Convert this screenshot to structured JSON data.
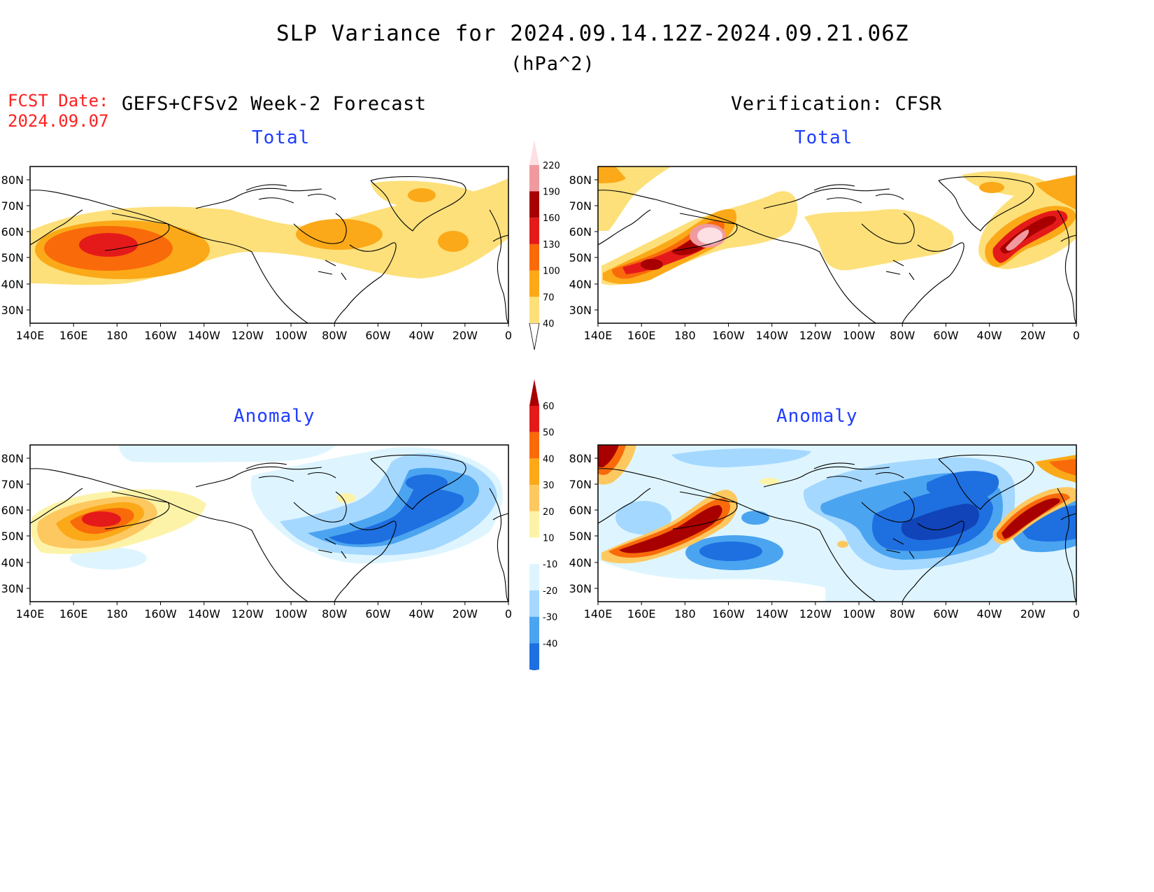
{
  "header": {
    "title": "SLP Variance for 2024.09.14.12Z-2024.09.21.06Z",
    "units": "(hPa^2)",
    "fcst_label": "FCST Date:",
    "fcst_date": "2024.09.07",
    "left_heading": "GEFS+CFSv2 Week-2 Forecast",
    "right_heading": "Verification: CFSR"
  },
  "panels": {
    "tl_title": "Total",
    "tr_title": "Total",
    "bl_title": "Anomaly",
    "br_title": "Anomaly"
  },
  "axes": {
    "lat_labels": [
      "80N",
      "70N",
      "60N",
      "50N",
      "40N",
      "30N"
    ],
    "lon_labels": [
      "140E",
      "160E",
      "180",
      "160W",
      "140W",
      "120W",
      "100W",
      "80W",
      "60W",
      "40W",
      "20W",
      "0"
    ]
  },
  "colorbars": {
    "total": {
      "levels": [
        "40",
        "70",
        "100",
        "130",
        "160",
        "190",
        "220"
      ],
      "colors": [
        "#fde07a",
        "#fba918",
        "#f96a0a",
        "#e41a1a",
        "#a80000",
        "#f09aa0",
        "#fde0e4"
      ]
    },
    "anomaly": {
      "levels": [
        "60",
        "50",
        "40",
        "30",
        "20",
        "10",
        "-10",
        "-20",
        "-30",
        "-40"
      ],
      "colors": [
        "#a80000",
        "#e41a1a",
        "#f96a0a",
        "#fba918",
        "#fdc860",
        "#fdf3a8",
        "#ffffff",
        "#def5ff",
        "#a5d8ff",
        "#4ba4f0",
        "#1e6fe0",
        "#1044b8"
      ]
    }
  }
}
